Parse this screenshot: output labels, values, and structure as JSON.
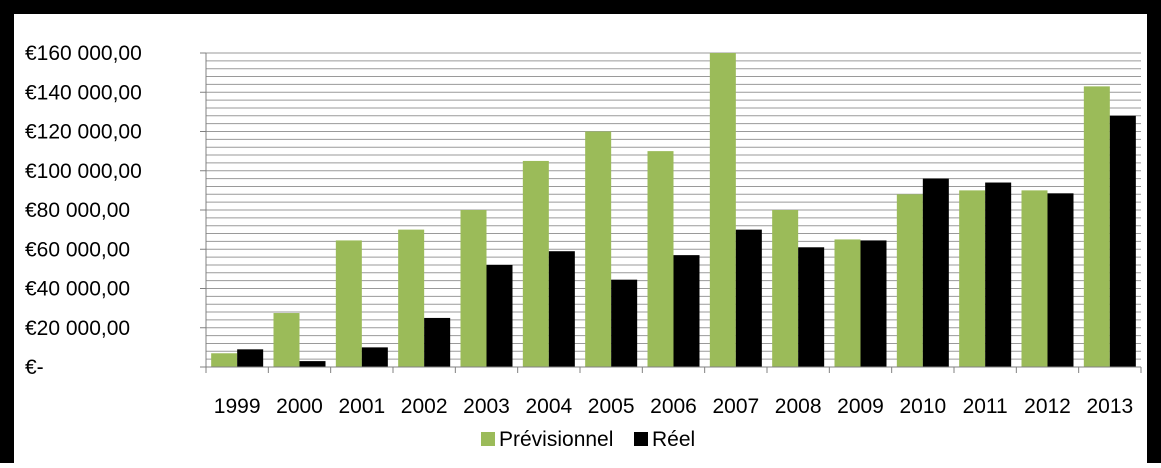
{
  "chart_data": {
    "type": "bar",
    "categories": [
      "1999",
      "2000",
      "2001",
      "2002",
      "2003",
      "2004",
      "2005",
      "2006",
      "2007",
      "2008",
      "2009",
      "2010",
      "2011",
      "2012",
      "2013"
    ],
    "series": [
      {
        "name": "Prévisionnel",
        "color": "#9BBB59",
        "values": [
          7000,
          27500,
          64500,
          70000,
          80000,
          105000,
          120000,
          110000,
          160000,
          80000,
          65000,
          88000,
          90000,
          90000,
          143000
        ]
      },
      {
        "name": "Réel",
        "color": "#000000",
        "values": [
          9000,
          3000,
          10000,
          25000,
          52000,
          59000,
          44500,
          57000,
          70000,
          61000,
          64500,
          96000,
          94000,
          88500,
          128000
        ]
      }
    ],
    "ylim": [
      0,
      160000
    ],
    "ytick_labels": [
      "€-",
      "€20 000,00",
      "€40 000,00",
      "€60 000,00",
      "€80 000,00",
      "€100 000,00",
      "€120 000,00",
      "€140 000,00",
      "€160 000,00"
    ],
    "ytick_values": [
      0,
      20000,
      40000,
      60000,
      80000,
      100000,
      120000,
      140000,
      160000
    ],
    "minor_grid_step": 4000,
    "legend_position": "bottom",
    "grid": true
  }
}
